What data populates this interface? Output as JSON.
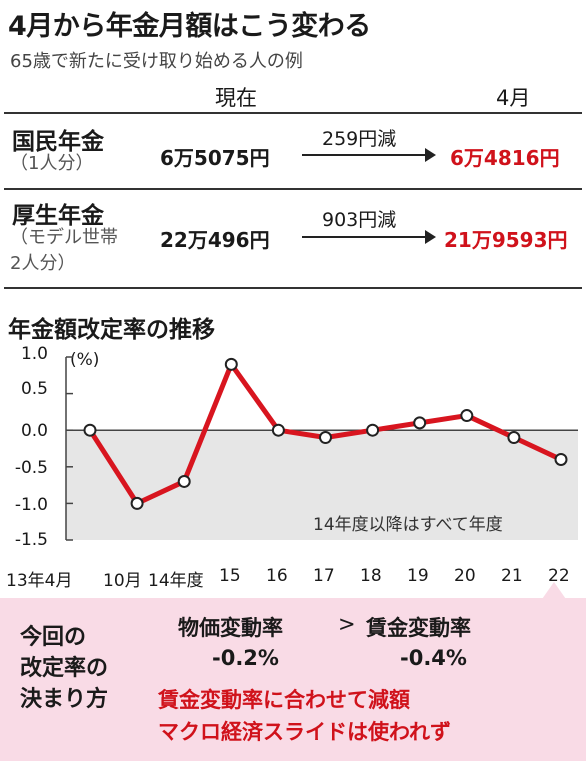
{
  "header": {
    "title": "4月から年金月額はこう変わる",
    "subtitle": "65歳で新たに受け取り始める人の例"
  },
  "table": {
    "col_current": "現在",
    "col_april": "4月",
    "rows": [
      {
        "name": "国民年金",
        "sub": [
          "（1人分）"
        ],
        "current": "6万5075円",
        "diff": "259円減",
        "april": "6万4816円"
      },
      {
        "name": "厚生年金",
        "sub": [
          "（モデル世帯",
          "2人分）"
        ],
        "current": "22万496円",
        "diff": "903円減",
        "april": "21万9593円"
      }
    ]
  },
  "chart_data": {
    "type": "line",
    "title": "年金額改定率の推移",
    "ylabel": "(%)",
    "categories": [
      "13年4月",
      "10月",
      "14年度",
      "15",
      "16",
      "17",
      "18",
      "19",
      "20",
      "21",
      "22"
    ],
    "values": [
      0,
      -1.0,
      -0.7,
      0.9,
      0,
      -0.1,
      0,
      0.1,
      0.2,
      -0.1,
      -0.4
    ],
    "ylim": [
      -1.5,
      1.0
    ],
    "yticks": [
      "1.0",
      "0.5",
      "0.0",
      "-0.5",
      "-1.0",
      "-1.5"
    ],
    "annotation": "14年度以降はすべて年度",
    "line_color": "#d8151f",
    "negative_fill": "#e6e6e6"
  },
  "footer": {
    "heading": [
      "今回の",
      "改定率の",
      "決まり方"
    ],
    "price_label": "物価変動率",
    "gt": ">",
    "wage_label": "賃金変動率",
    "price_value": "-0.2%",
    "wage_value": "-0.4%",
    "line1": "賃金変動率に合わせて減額",
    "line2": "マクロ経済スライドは使われず",
    "bg_color": "#f9dbe6"
  }
}
